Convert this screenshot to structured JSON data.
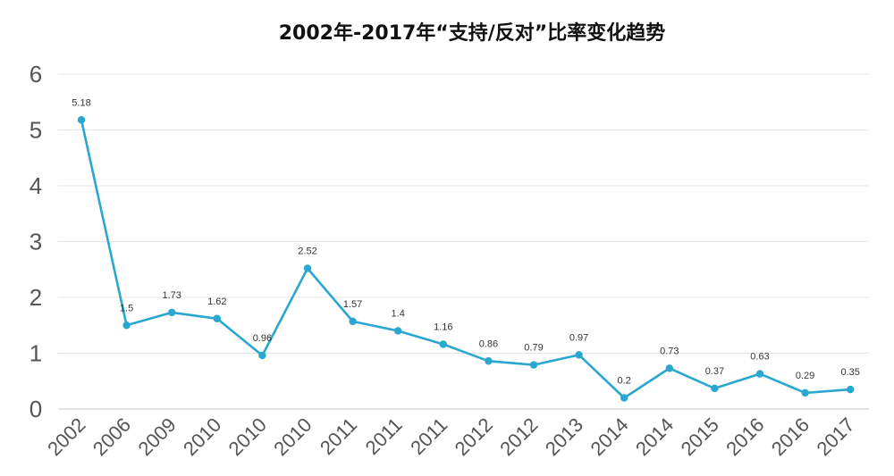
{
  "chart_data": {
    "type": "line",
    "title": "2002年-2017年“支持/反对”比率变化趋势",
    "xlabel": "",
    "ylabel": "",
    "categories": [
      "2002",
      "2006",
      "2009",
      "2010",
      "2010",
      "2010",
      "2011",
      "2011",
      "2011",
      "2012",
      "2012",
      "2013",
      "2014",
      "2014",
      "2015",
      "2016",
      "2016",
      "2017"
    ],
    "values": [
      5.18,
      1.5,
      1.73,
      1.62,
      0.96,
      2.52,
      1.57,
      1.4,
      1.16,
      0.86,
      0.79,
      0.97,
      0.2,
      0.73,
      0.37,
      0.63,
      0.29,
      0.35
    ],
    "data_labels": [
      "5.18",
      "1.5",
      "1.73",
      "1.62",
      "0.96",
      "2.52",
      "1.57",
      "1.4",
      "1.16",
      "0.86",
      "0.79",
      "0.97",
      "0.2",
      "0.73",
      "0.37",
      "0.63",
      "0.29",
      "0.35"
    ],
    "ylim": [
      0,
      6
    ],
    "yticks": [
      "0",
      "1",
      "2",
      "3",
      "4",
      "5",
      "6"
    ],
    "grid": true,
    "line_color": "#2aa7cf"
  }
}
